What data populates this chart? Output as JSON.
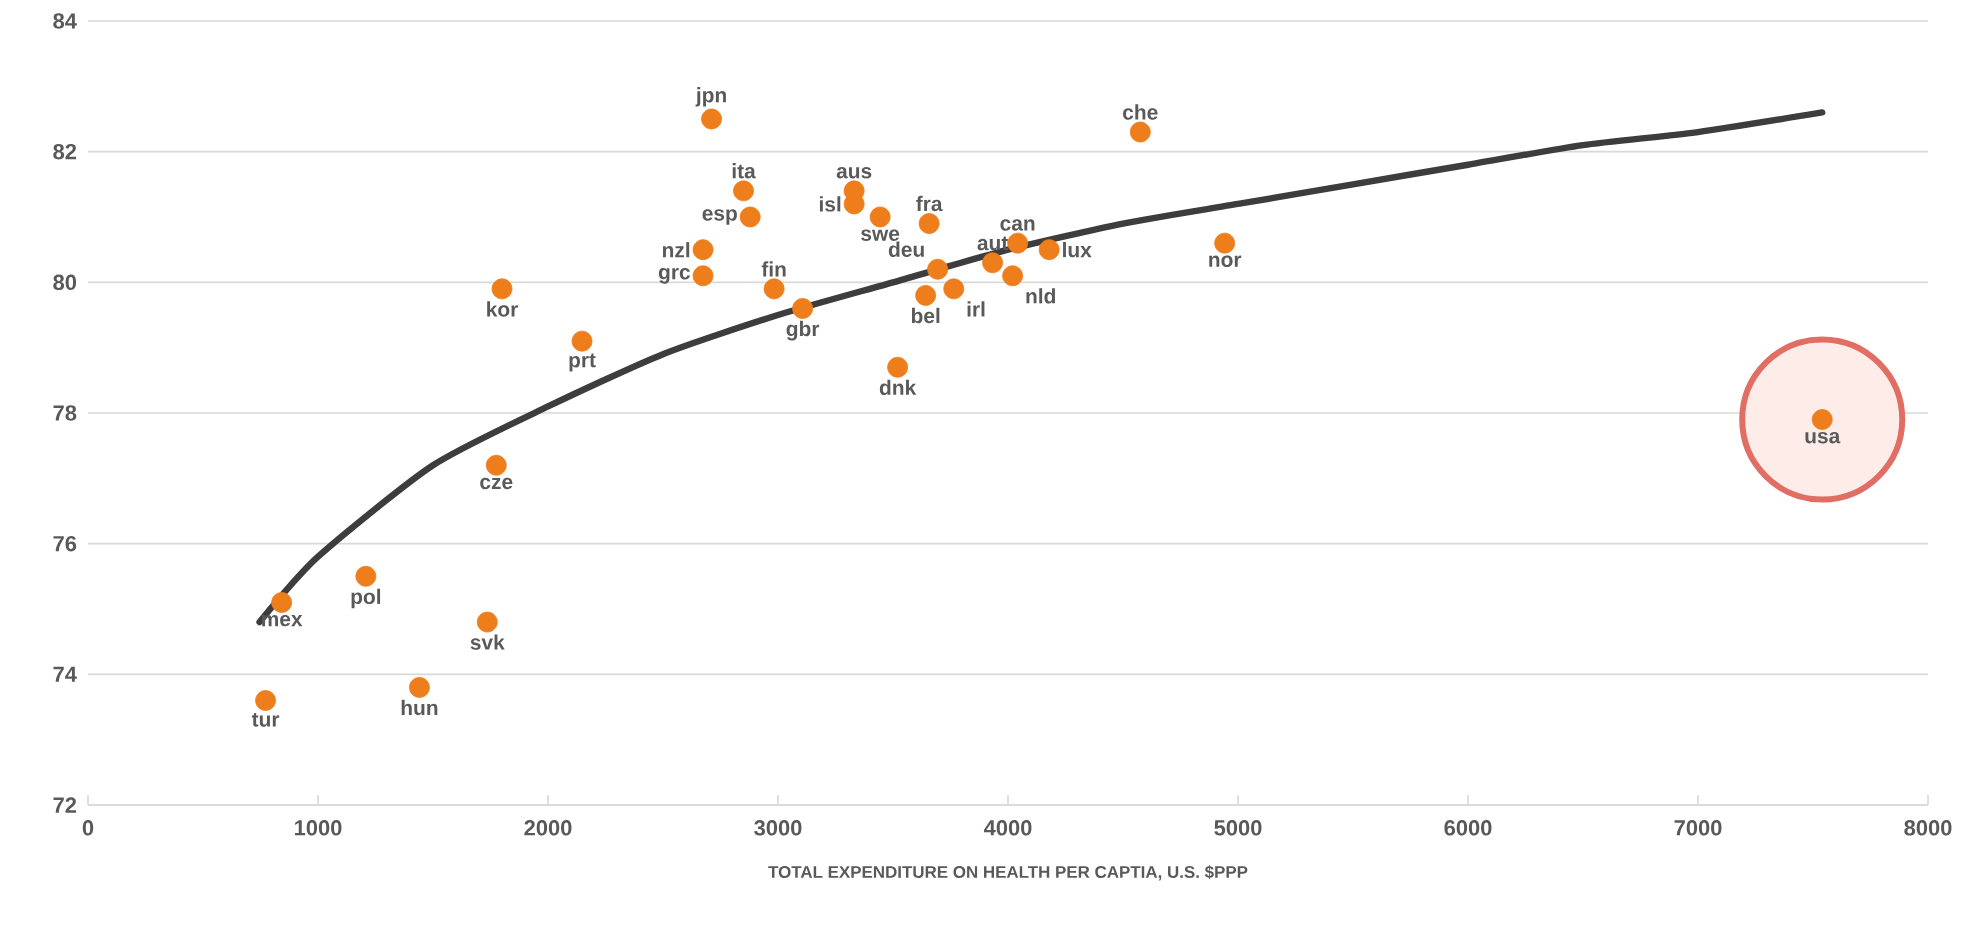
{
  "chart_data": {
    "type": "scatter",
    "xlabel": "TOTAL EXPENDITURE ON HEALTH PER CAPTIA, U.S. $PPP",
    "xlim": [
      0,
      8000
    ],
    "xticks": [
      0,
      1000,
      2000,
      3000,
      4000,
      5000,
      6000,
      7000,
      8000
    ],
    "ylim": [
      72,
      84
    ],
    "yticks": [
      72,
      74,
      76,
      78,
      80,
      82,
      84
    ],
    "grid": "y",
    "marker": "circle",
    "series": [
      {
        "color": "#ee7d1c",
        "x": [
          2711,
          4575,
          2850,
          3331,
          3331,
          2879,
          3444,
          3657,
          2674,
          2674,
          2983,
          3107,
          3694,
          3642,
          3764,
          3933,
          4042,
          4020,
          4179,
          4942,
          3520,
          1800,
          2148,
          1775,
          1208,
          842,
          1736,
          1441,
          772,
          7540
        ],
        "values": [
          82.5,
          82.3,
          81.4,
          81.4,
          81.2,
          81.0,
          81.0,
          80.9,
          80.5,
          80.1,
          79.9,
          79.6,
          80.2,
          79.8,
          79.9,
          80.3,
          80.6,
          80.1,
          80.5,
          80.6,
          78.7,
          79.9,
          79.1,
          77.2,
          75.5,
          75.1,
          74.8,
          73.8,
          73.6,
          77.9
        ]
      },
      {
        "type": "line",
        "color": "#3d3d3d",
        "marker": "none",
        "x": [
          746,
          1000,
          1500,
          2000,
          2500,
          3000,
          3500,
          4000,
          4500,
          5000,
          5500,
          6000,
          6500,
          7000,
          7540
        ],
        "values": [
          74.8,
          75.8,
          77.2,
          78.1,
          78.9,
          79.5,
          80.0,
          80.5,
          80.9,
          81.2,
          81.5,
          81.8,
          82.1,
          82.3,
          82.6
        ]
      }
    ],
    "annotations": [
      {
        "text": "jpn",
        "x": 2711,
        "y": 82.5
      },
      {
        "text": "che",
        "x": 4575,
        "y": 82.3
      },
      {
        "text": "ita",
        "x": 2850,
        "y": 81.4
      },
      {
        "text": "aus",
        "x": 3331,
        "y": 81.4
      },
      {
        "text": "isl",
        "x": 3331,
        "y": 81.2
      },
      {
        "text": "esp",
        "x": 2879,
        "y": 81.0
      },
      {
        "text": "swe",
        "x": 3444,
        "y": 81.0
      },
      {
        "text": "fra",
        "x": 3657,
        "y": 80.9
      },
      {
        "text": "nzl",
        "x": 2674,
        "y": 80.5
      },
      {
        "text": "grc",
        "x": 2674,
        "y": 80.1
      },
      {
        "text": "fin",
        "x": 2983,
        "y": 79.9
      },
      {
        "text": "gbr",
        "x": 3107,
        "y": 79.6
      },
      {
        "text": "deu",
        "x": 3694,
        "y": 80.2
      },
      {
        "text": "bel",
        "x": 3642,
        "y": 79.8
      },
      {
        "text": "irl",
        "x": 3764,
        "y": 79.9
      },
      {
        "text": "aut",
        "x": 3933,
        "y": 80.3
      },
      {
        "text": "can",
        "x": 4042,
        "y": 80.6
      },
      {
        "text": "nld",
        "x": 4020,
        "y": 80.1
      },
      {
        "text": "lux",
        "x": 4179,
        "y": 80.5
      },
      {
        "text": "nor",
        "x": 4942,
        "y": 80.6
      },
      {
        "text": "dnk",
        "x": 3520,
        "y": 78.7
      },
      {
        "text": "kor",
        "x": 1800,
        "y": 79.9
      },
      {
        "text": "prt",
        "x": 2148,
        "y": 79.1
      },
      {
        "text": "cze",
        "x": 1775,
        "y": 77.2
      },
      {
        "text": "pol",
        "x": 1208,
        "y": 75.5
      },
      {
        "text": "mex",
        "x": 842,
        "y": 75.1
      },
      {
        "text": "svk",
        "x": 1736,
        "y": 74.8
      },
      {
        "text": "hun",
        "x": 1441,
        "y": 73.8
      },
      {
        "text": "tur",
        "x": 772,
        "y": 73.6
      },
      {
        "text": "usa",
        "x": 7540,
        "y": 77.9
      }
    ]
  }
}
